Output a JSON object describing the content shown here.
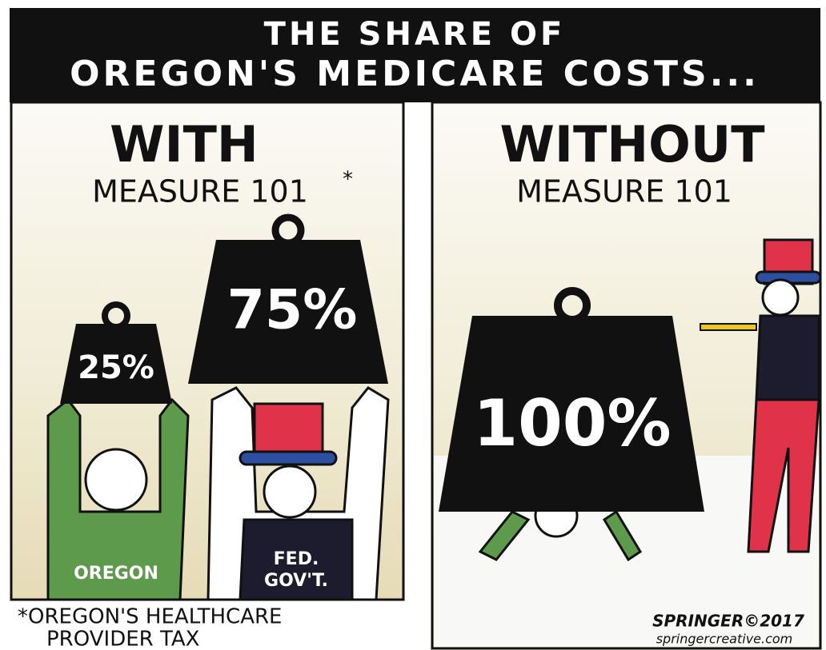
{
  "header": {
    "title_lines": [
      "THE SHARE OF",
      "OREGON'S MEDICARE COSTS..."
    ]
  },
  "panels": [
    {
      "heading": "WITH",
      "subheading": "MEASURE 101",
      "asterisk": "*",
      "weights": [
        "25%",
        "75%"
      ],
      "figures": [
        "OREGON",
        "FED.",
        "GOV'T."
      ],
      "footnote_lines": [
        "*OREGON'S HEALTHCARE",
        "PROVIDER TAX"
      ]
    },
    {
      "heading": "WITHOUT",
      "subheading": "MEASURE 101",
      "weights": [
        "100%"
      ]
    }
  ],
  "signature": {
    "name": "SPRINGER©2017",
    "site": "springercreative.com"
  }
}
